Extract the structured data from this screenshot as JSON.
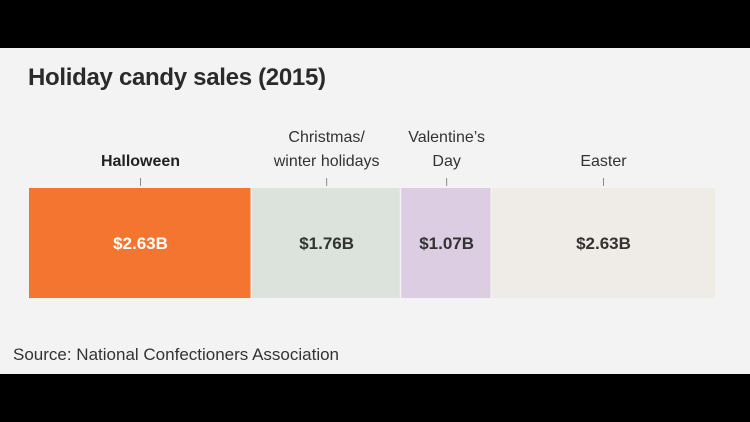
{
  "colors": {
    "background": "#000000",
    "panel": "#f3f3f3",
    "halloween": "#f47530",
    "christmas": "#dbe3dc",
    "valentines": "#ddcde2",
    "easter": "#efebe7",
    "highlight_text": "#ffffff",
    "text": "#333333"
  },
  "chart_data": {
    "type": "bar",
    "orientation": "stacked-horizontal",
    "title": "Holiday candy sales (2015)",
    "categories": [
      "Halloween",
      "Christmas/ winter holidays",
      "Valentine’s Day",
      "Easter"
    ],
    "category_lines": [
      [
        "Halloween"
      ],
      [
        "Christmas/",
        "winter holidays"
      ],
      [
        "Valentine’s",
        "Day"
      ],
      [
        "Easter"
      ]
    ],
    "values": [
      2.63,
      1.76,
      1.07,
      2.63
    ],
    "value_labels": [
      "$2.63B",
      "$1.76B",
      "$1.07B",
      "$2.63B"
    ],
    "highlight": "Halloween",
    "units": "billions USD",
    "source": "Source: National Confectioners Association"
  }
}
